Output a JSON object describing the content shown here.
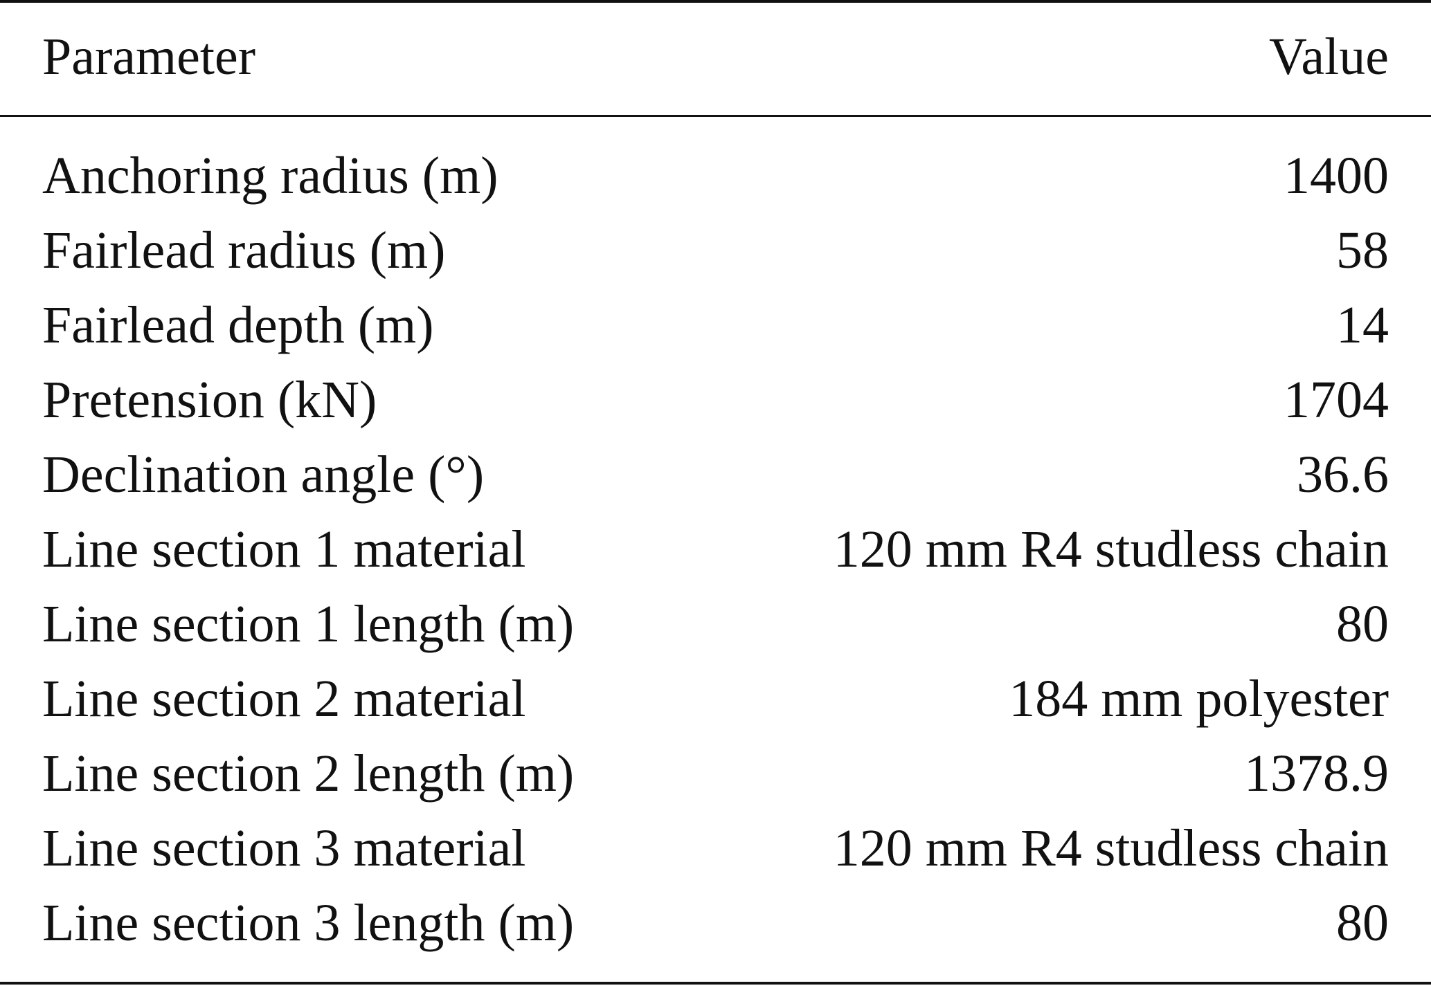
{
  "table": {
    "header": [
      "Parameter",
      "Value"
    ],
    "rows": [
      [
        "Anchoring radius (m)",
        "1400"
      ],
      [
        "Fairlead radius (m)",
        "58"
      ],
      [
        "Fairlead depth (m)",
        "14"
      ],
      [
        "Pretension (kN)",
        "1704"
      ],
      [
        "Declination angle (°)",
        "36.6"
      ],
      [
        "Line section 1 material",
        "120 mm R4 studless chain"
      ],
      [
        "Line section 1 length (m)",
        "80"
      ],
      [
        "Line section 2 material",
        "184 mm polyester"
      ],
      [
        "Line section 2 length (m)",
        "1378.9"
      ],
      [
        "Line section 3 material",
        "120 mm R4 studless chain"
      ],
      [
        "Line section 3 length (m)",
        "80"
      ]
    ]
  }
}
